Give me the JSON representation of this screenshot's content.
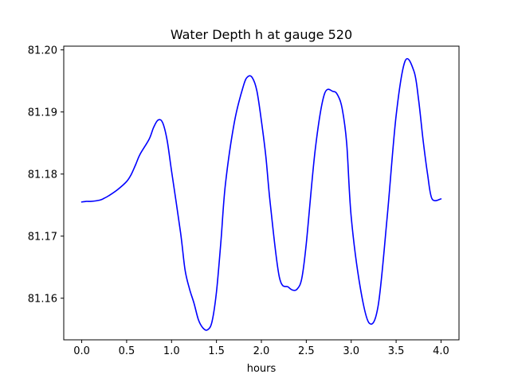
{
  "chart_data": {
    "type": "line",
    "title": "Water Depth h at gauge 520",
    "xlabel": "hours",
    "ylabel": "",
    "xlim": [
      -0.2,
      4.2
    ],
    "ylim": [
      81.1533,
      81.2006
    ],
    "grid": false,
    "legend": "none",
    "x_ticks": [
      0.0,
      0.5,
      1.0,
      1.5,
      2.0,
      2.5,
      3.0,
      3.5,
      4.0
    ],
    "x_tick_labels": [
      "0.0",
      "0.5",
      "1.0",
      "1.5",
      "2.0",
      "2.5",
      "3.0",
      "3.5",
      "4.0"
    ],
    "y_ticks": [
      81.16,
      81.17,
      81.18,
      81.19,
      81.2
    ],
    "y_tick_labels": [
      "81.16",
      "81.17",
      "81.18",
      "81.19",
      "81.20"
    ],
    "series": [
      {
        "color": "#0000ff",
        "x": [
          0.0,
          0.05,
          0.1,
          0.2,
          0.25,
          0.3,
          0.4,
          0.5,
          0.55,
          0.6,
          0.65,
          0.75,
          0.8,
          0.85,
          0.9,
          0.95,
          1.0,
          1.1,
          1.15,
          1.2,
          1.25,
          1.3,
          1.35,
          1.4,
          1.45,
          1.5,
          1.55,
          1.6,
          1.7,
          1.8,
          1.85,
          1.9,
          1.95,
          2.0,
          2.05,
          2.1,
          2.2,
          2.3,
          2.35,
          2.4,
          2.45,
          2.5,
          2.6,
          2.7,
          2.8,
          2.85,
          2.9,
          2.95,
          3.0,
          3.1,
          3.2,
          3.3,
          3.4,
          3.5,
          3.6,
          3.7,
          3.75,
          3.8,
          3.85,
          3.9,
          4.0
        ],
        "values": [
          81.1755,
          81.1756,
          81.1756,
          81.1758,
          81.1761,
          81.1765,
          81.1775,
          81.1788,
          81.1799,
          81.1815,
          81.1832,
          81.1856,
          81.1875,
          81.1887,
          81.1883,
          81.1855,
          81.1805,
          81.1706,
          81.1646,
          81.1615,
          81.1592,
          81.1565,
          81.1552,
          81.1549,
          81.1562,
          81.161,
          81.1692,
          81.1784,
          81.1884,
          81.1942,
          81.1957,
          81.1955,
          81.1934,
          81.1886,
          81.1828,
          81.1751,
          81.1634,
          81.1618,
          81.1613,
          81.1615,
          81.1632,
          81.1688,
          81.184,
          81.1928,
          81.1933,
          81.1927,
          81.1905,
          81.1849,
          81.1731,
          81.1618,
          81.156,
          81.1588,
          81.173,
          81.1894,
          81.1982,
          81.1965,
          81.192,
          81.1855,
          81.18,
          81.176,
          81.176
        ]
      }
    ]
  }
}
